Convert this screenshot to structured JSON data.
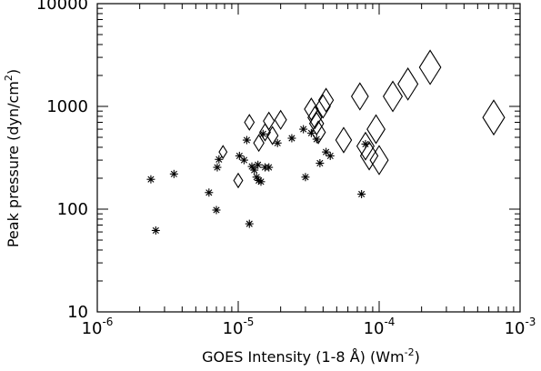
{
  "chart_data": {
    "type": "scatter",
    "xlabel": "GOES Intensity (1-8 Å) (Wm",
    "xlabel_sup": "-2",
    "xlabel_end": ")",
    "ylabel": "Peak pressure (dyn/cm",
    "ylabel_sup": "2",
    "ylabel_end": ")",
    "x_scale": "log",
    "y_scale": "log",
    "xlim": [
      1e-06,
      0.001
    ],
    "ylim": [
      10,
      10000
    ],
    "x_ticks": [
      {
        "value": 1e-06,
        "base": "10",
        "exp": "-6"
      },
      {
        "value": 1e-05,
        "base": "10",
        "exp": "-5"
      },
      {
        "value": 0.0001,
        "base": "10",
        "exp": "-4"
      },
      {
        "value": 0.001,
        "base": "10",
        "exp": "-3"
      }
    ],
    "y_ticks": [
      {
        "value": 10,
        "label": "10"
      },
      {
        "value": 100,
        "label": "100"
      },
      {
        "value": 1000,
        "label": "1000"
      },
      {
        "value": 10000,
        "label": "10000"
      }
    ],
    "grid": false,
    "series": [
      {
        "marker": "asterisk",
        "points": [
          [
            2.4e-06,
            195
          ],
          [
            2.6e-06,
            62
          ],
          [
            3.5e-06,
            220
          ],
          [
            6.2e-06,
            145
          ],
          [
            7e-06,
            98
          ],
          [
            7.1e-06,
            255
          ],
          [
            7.3e-06,
            305
          ],
          [
            1.02e-05,
            330
          ],
          [
            1.1e-05,
            300
          ],
          [
            1.15e-05,
            470
          ],
          [
            1.2e-05,
            72
          ],
          [
            1.25e-05,
            260
          ],
          [
            1.3e-05,
            240
          ],
          [
            1.35e-05,
            205
          ],
          [
            1.38e-05,
            270
          ],
          [
            1.4e-05,
            190
          ],
          [
            1.45e-05,
            185
          ],
          [
            1.5e-05,
            540
          ],
          [
            1.55e-05,
            255
          ],
          [
            1.65e-05,
            255
          ],
          [
            1.9e-05,
            440
          ],
          [
            2.4e-05,
            490
          ],
          [
            2.9e-05,
            600
          ],
          [
            3e-05,
            205
          ],
          [
            3.3e-05,
            550
          ],
          [
            3.6e-05,
            480
          ],
          [
            3.8e-05,
            280
          ],
          [
            4.2e-05,
            360
          ],
          [
            4.5e-05,
            330
          ],
          [
            7.5e-05,
            140
          ],
          [
            8e-05,
            430
          ]
        ]
      },
      {
        "marker": "diamond",
        "points": [
          [
            7.8e-06,
            360
          ],
          [
            1e-05,
            190
          ],
          [
            1.2e-05,
            700
          ],
          [
            1.4e-05,
            440
          ],
          [
            1.55e-05,
            560
          ],
          [
            1.65e-05,
            720
          ],
          [
            1.75e-05,
            520
          ],
          [
            2e-05,
            740
          ],
          [
            3.3e-05,
            940
          ],
          [
            3.5e-05,
            780
          ],
          [
            3.6e-05,
            680
          ],
          [
            3.7e-05,
            560
          ],
          [
            4e-05,
            1000
          ],
          [
            4.2e-05,
            1150
          ],
          [
            5.6e-05,
            470
          ],
          [
            7.3e-05,
            1250
          ],
          [
            8e-05,
            410
          ],
          [
            8.5e-05,
            330
          ],
          [
            9.5e-05,
            600
          ],
          [
            0.0001,
            300
          ],
          [
            0.000125,
            1250
          ],
          [
            0.00016,
            1650
          ],
          [
            0.00023,
            2400
          ],
          [
            0.00065,
            780
          ]
        ]
      }
    ]
  }
}
